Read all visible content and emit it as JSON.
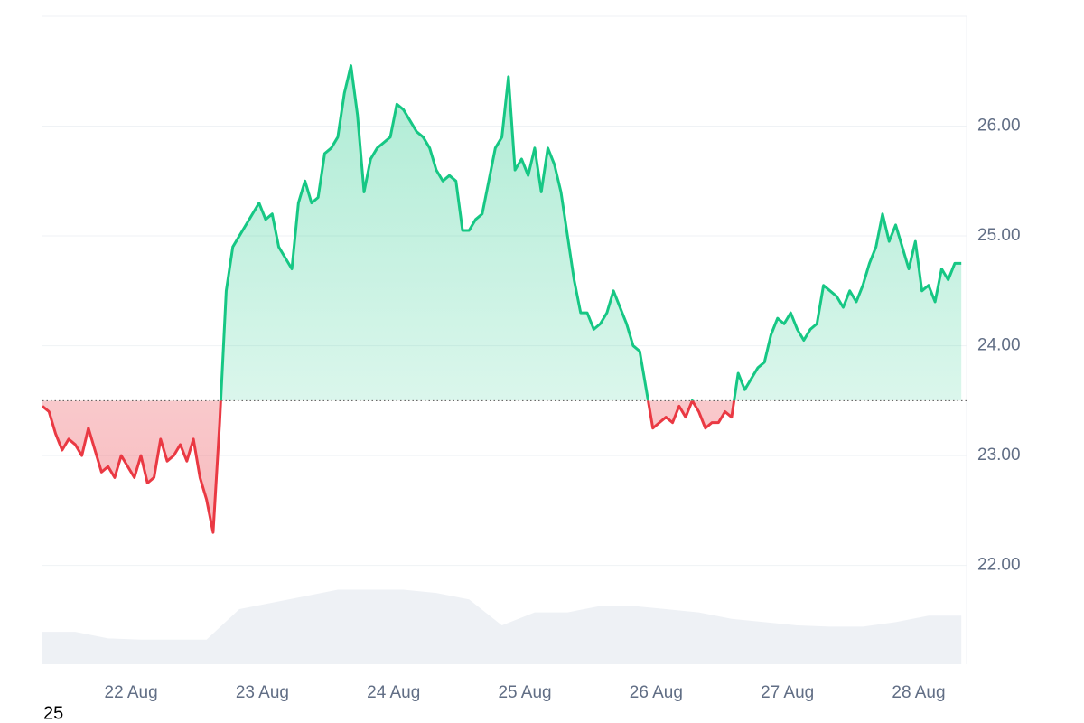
{
  "chart_data": {
    "type": "line",
    "values": [
      23.45,
      23.4,
      23.2,
      23.05,
      23.15,
      23.1,
      23.0,
      23.25,
      23.05,
      22.85,
      22.9,
      22.8,
      23.0,
      22.9,
      22.8,
      23.0,
      22.75,
      22.8,
      23.15,
      22.95,
      23.0,
      23.1,
      22.95,
      23.15,
      22.8,
      22.6,
      22.3,
      23.3,
      24.5,
      24.9,
      25.0,
      25.1,
      25.2,
      25.3,
      25.15,
      25.2,
      24.9,
      24.8,
      24.7,
      25.3,
      25.5,
      25.3,
      25.35,
      25.75,
      25.8,
      25.9,
      26.3,
      26.55,
      26.1,
      25.4,
      25.7,
      25.8,
      25.85,
      25.9,
      26.2,
      26.15,
      26.05,
      25.95,
      25.9,
      25.8,
      25.6,
      25.5,
      25.55,
      25.5,
      25.05,
      25.05,
      25.15,
      25.2,
      25.5,
      25.8,
      25.9,
      26.45,
      25.6,
      25.7,
      25.55,
      25.8,
      25.4,
      25.8,
      25.65,
      25.4,
      25.0,
      24.6,
      24.3,
      24.3,
      24.15,
      24.2,
      24.3,
      24.5,
      24.35,
      24.2,
      24.0,
      23.95,
      23.6,
      23.25,
      23.3,
      23.35,
      23.3,
      23.45,
      23.35,
      23.5,
      23.4,
      23.25,
      23.3,
      23.3,
      23.4,
      23.35,
      23.75,
      23.6,
      23.7,
      23.8,
      23.85,
      24.1,
      24.25,
      24.2,
      24.3,
      24.15,
      24.05,
      24.15,
      24.2,
      24.55,
      24.5,
      24.45,
      24.35,
      24.5,
      24.4,
      24.55,
      24.75,
      24.9,
      25.2,
      24.95,
      25.1,
      24.9,
      24.7,
      24.95,
      24.5,
      24.55,
      24.4,
      24.7,
      24.6,
      24.75,
      24.75
    ],
    "baseline": 23.5,
    "color_up": "#16c784",
    "color_down": "#ea3943",
    "ylim": [
      21.1,
      27.0
    ],
    "yticks": [
      {
        "value": 22,
        "label": "22.00"
      },
      {
        "value": 23,
        "label": "23.00"
      },
      {
        "value": 24,
        "label": "24.00"
      },
      {
        "value": 25,
        "label": "25.00"
      },
      {
        "value": 26,
        "label": "26.00"
      }
    ],
    "xlim": [
      0,
      140.8
    ],
    "xticks": [
      {
        "value": 13.5,
        "label": "22 Aug"
      },
      {
        "value": 33.5,
        "label": "23 Aug"
      },
      {
        "value": 53.5,
        "label": "24 Aug"
      },
      {
        "value": 73.5,
        "label": "25 Aug"
      },
      {
        "value": 93.5,
        "label": "26 Aug"
      },
      {
        "value": 113.5,
        "label": "27 Aug"
      },
      {
        "value": 133.5,
        "label": "28 Aug"
      }
    ],
    "grid": true,
    "volume": {
      "values": [
        5,
        5,
        4,
        3.8,
        3.8,
        3.8,
        8.5,
        9.5,
        10.5,
        11.5,
        11.5,
        11.5,
        11,
        10,
        6,
        8,
        8,
        9,
        9,
        8.5,
        8,
        7,
        6.5,
        6,
        5.8,
        5.8,
        6.5,
        7.5,
        7.5
      ],
      "color": "#eef1f5",
      "y2lim": [
        0,
        100
      ]
    },
    "footnote": "25"
  }
}
